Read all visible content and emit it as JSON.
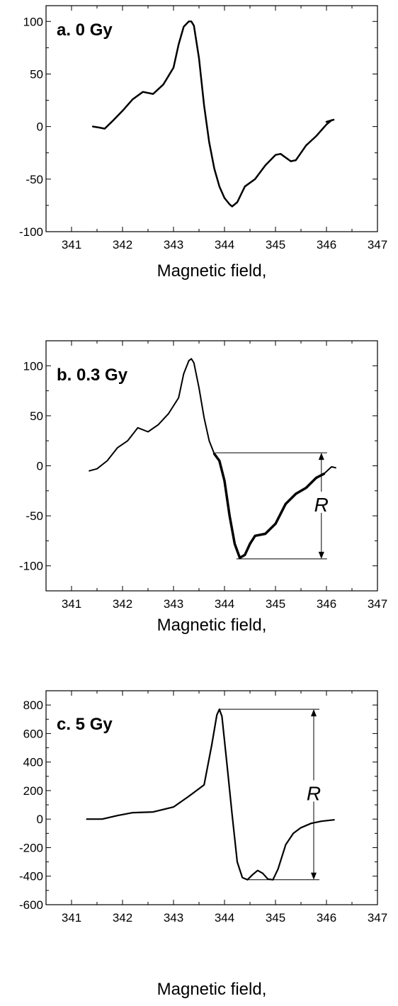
{
  "chart_data": [
    {
      "type": "line",
      "title": "a.  0 Gy",
      "xlabel": "Magnetic field,",
      "ylabel": "",
      "xlim": [
        340.5,
        347
      ],
      "ylim": [
        -100,
        115
      ],
      "x_ticks": [
        341,
        342,
        343,
        344,
        345,
        346,
        347
      ],
      "y_ticks": [
        -100,
        -50,
        0,
        50,
        100
      ],
      "grid": false,
      "series": [
        {
          "x": [
            341.42,
            341.55,
            341.65,
            341.8,
            342.0,
            342.2,
            342.4,
            342.6,
            342.8,
            343.0,
            343.1,
            343.2,
            343.3,
            343.35,
            343.4,
            343.5,
            343.6,
            343.7,
            343.8,
            343.9,
            344.0,
            344.1,
            344.15,
            344.25,
            344.4,
            344.6,
            344.8,
            345.0,
            345.1,
            345.3,
            345.4,
            345.6,
            345.8,
            346.0,
            346.1
          ],
          "y": [
            0,
            -1,
            -2,
            5,
            15,
            26,
            33,
            31,
            40,
            56,
            78,
            95,
            100,
            100,
            96,
            65,
            20,
            -15,
            -40,
            -57,
            -68,
            -74,
            -76,
            -72,
            -57,
            -50,
            -37,
            -27,
            -26,
            -33,
            -32,
            -18,
            -9,
            2,
            6
          ]
        },
        {
          "x": [
            346.0,
            346.14
          ],
          "y": [
            4.5,
            6.5
          ]
        }
      ],
      "annotations": []
    },
    {
      "type": "line",
      "title": "b.  0.3 Gy",
      "xlabel": "Magnetic field,",
      "ylabel": "",
      "xlim": [
        340.5,
        347
      ],
      "ylim": [
        -125,
        125
      ],
      "x_ticks": [
        341,
        342,
        343,
        344,
        345,
        346,
        347
      ],
      "y_ticks": [
        -100,
        -50,
        0,
        50,
        100
      ],
      "grid": false,
      "series": [
        {
          "x": [
            341.35,
            341.5,
            341.7,
            341.9,
            342.1,
            342.3,
            342.5,
            342.7,
            342.9,
            343.1,
            343.2,
            343.3,
            343.35,
            343.4,
            343.5,
            343.6,
            343.7,
            343.8
          ],
          "y": [
            -5,
            -3,
            5,
            18,
            25,
            38,
            34,
            41,
            52,
            68,
            92,
            105,
            107,
            103,
            78,
            48,
            25,
            12
          ]
        },
        {
          "x": [
            343.8,
            343.9,
            344.0,
            344.1,
            344.2,
            344.3,
            344.4,
            344.5,
            344.6,
            344.8,
            345.0,
            345.2,
            345.4,
            345.6,
            345.8,
            345.95
          ],
          "y": [
            12,
            5,
            -15,
            -50,
            -78,
            -92,
            -89,
            -78,
            -70,
            -68,
            -58,
            -38,
            -28,
            -22,
            -12,
            -8
          ]
        },
        {
          "x": [
            345.95,
            346.1,
            346.18
          ],
          "y": [
            -8,
            -1,
            -2
          ]
        }
      ],
      "annotations": [
        {
          "label": "R",
          "x": 345.9,
          "y_top": 13,
          "y_bottom": -93
        }
      ]
    },
    {
      "type": "line",
      "title": "c.  5 Gy",
      "xlabel": "Magnetic field,",
      "ylabel": "",
      "xlim": [
        340.5,
        347
      ],
      "ylim": [
        -600,
        900
      ],
      "x_ticks": [
        341,
        342,
        343,
        344,
        345,
        346,
        347
      ],
      "y_ticks": [
        -600,
        -400,
        -200,
        0,
        200,
        400,
        600,
        800
      ],
      "grid": false,
      "series": [
        {
          "x": [
            341.3,
            341.6,
            341.9,
            342.2,
            342.6,
            343.0,
            343.3,
            343.6,
            343.75,
            343.85,
            343.9,
            343.95,
            344.05,
            344.15,
            344.25,
            344.35,
            344.45,
            344.55,
            344.65,
            344.75,
            344.85,
            344.95,
            345.05,
            345.2,
            345.35,
            345.5,
            345.7,
            345.9,
            346.15
          ],
          "y": [
            0,
            0,
            25,
            45,
            50,
            85,
            160,
            240,
            520,
            730,
            770,
            720,
            380,
            30,
            -300,
            -410,
            -425,
            -390,
            -360,
            -380,
            -420,
            -425,
            -350,
            -180,
            -100,
            -60,
            -30,
            -15,
            -5
          ]
        }
      ],
      "annotations": [
        {
          "label": "R",
          "x": 345.75,
          "y_top": 770,
          "y_bottom": -425
        }
      ]
    }
  ]
}
